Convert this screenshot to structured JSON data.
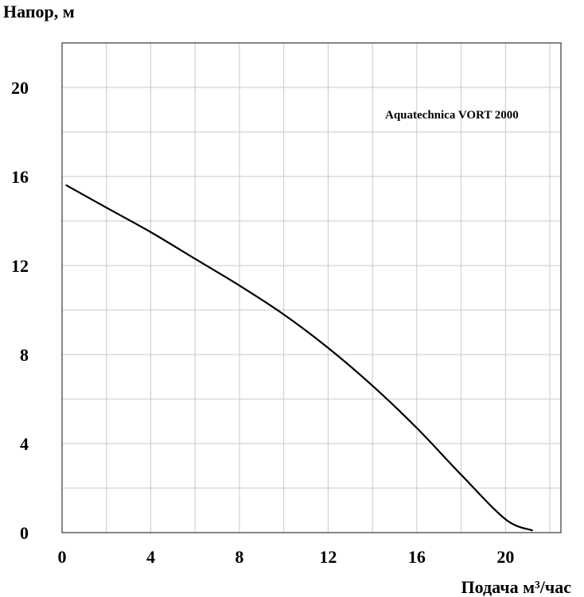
{
  "chart_data": {
    "type": "line",
    "title": "",
    "xlabel": "Подача  м³/час",
    "ylabel": "Напор, м",
    "annotation": "Aquatechnica VORT 2000",
    "xlim": [
      0,
      22.5
    ],
    "ylim": [
      0,
      22
    ],
    "x_ticks": [
      0,
      4,
      8,
      12,
      16,
      20
    ],
    "y_ticks": [
      0,
      4,
      8,
      12,
      16,
      20
    ],
    "x_tick_labels": [
      "0",
      "4",
      "8",
      "12",
      "16",
      "20"
    ],
    "y_tick_labels": [
      "0",
      "4",
      "8",
      "12",
      "16",
      "20"
    ],
    "grid": true,
    "grid_x_step": 2,
    "grid_y_step": 2,
    "colors": {
      "line": "#000000",
      "grid": "#c8c8c8",
      "frame": "#444444"
    },
    "series": [
      {
        "x": [
          0.2,
          2,
          4,
          6,
          8,
          10,
          12,
          14,
          16,
          18,
          20,
          21.2
        ],
        "y": [
          15.6,
          14.6,
          13.5,
          12.3,
          11.1,
          9.8,
          8.3,
          6.6,
          4.7,
          2.6,
          0.6,
          0.1
        ]
      }
    ]
  }
}
